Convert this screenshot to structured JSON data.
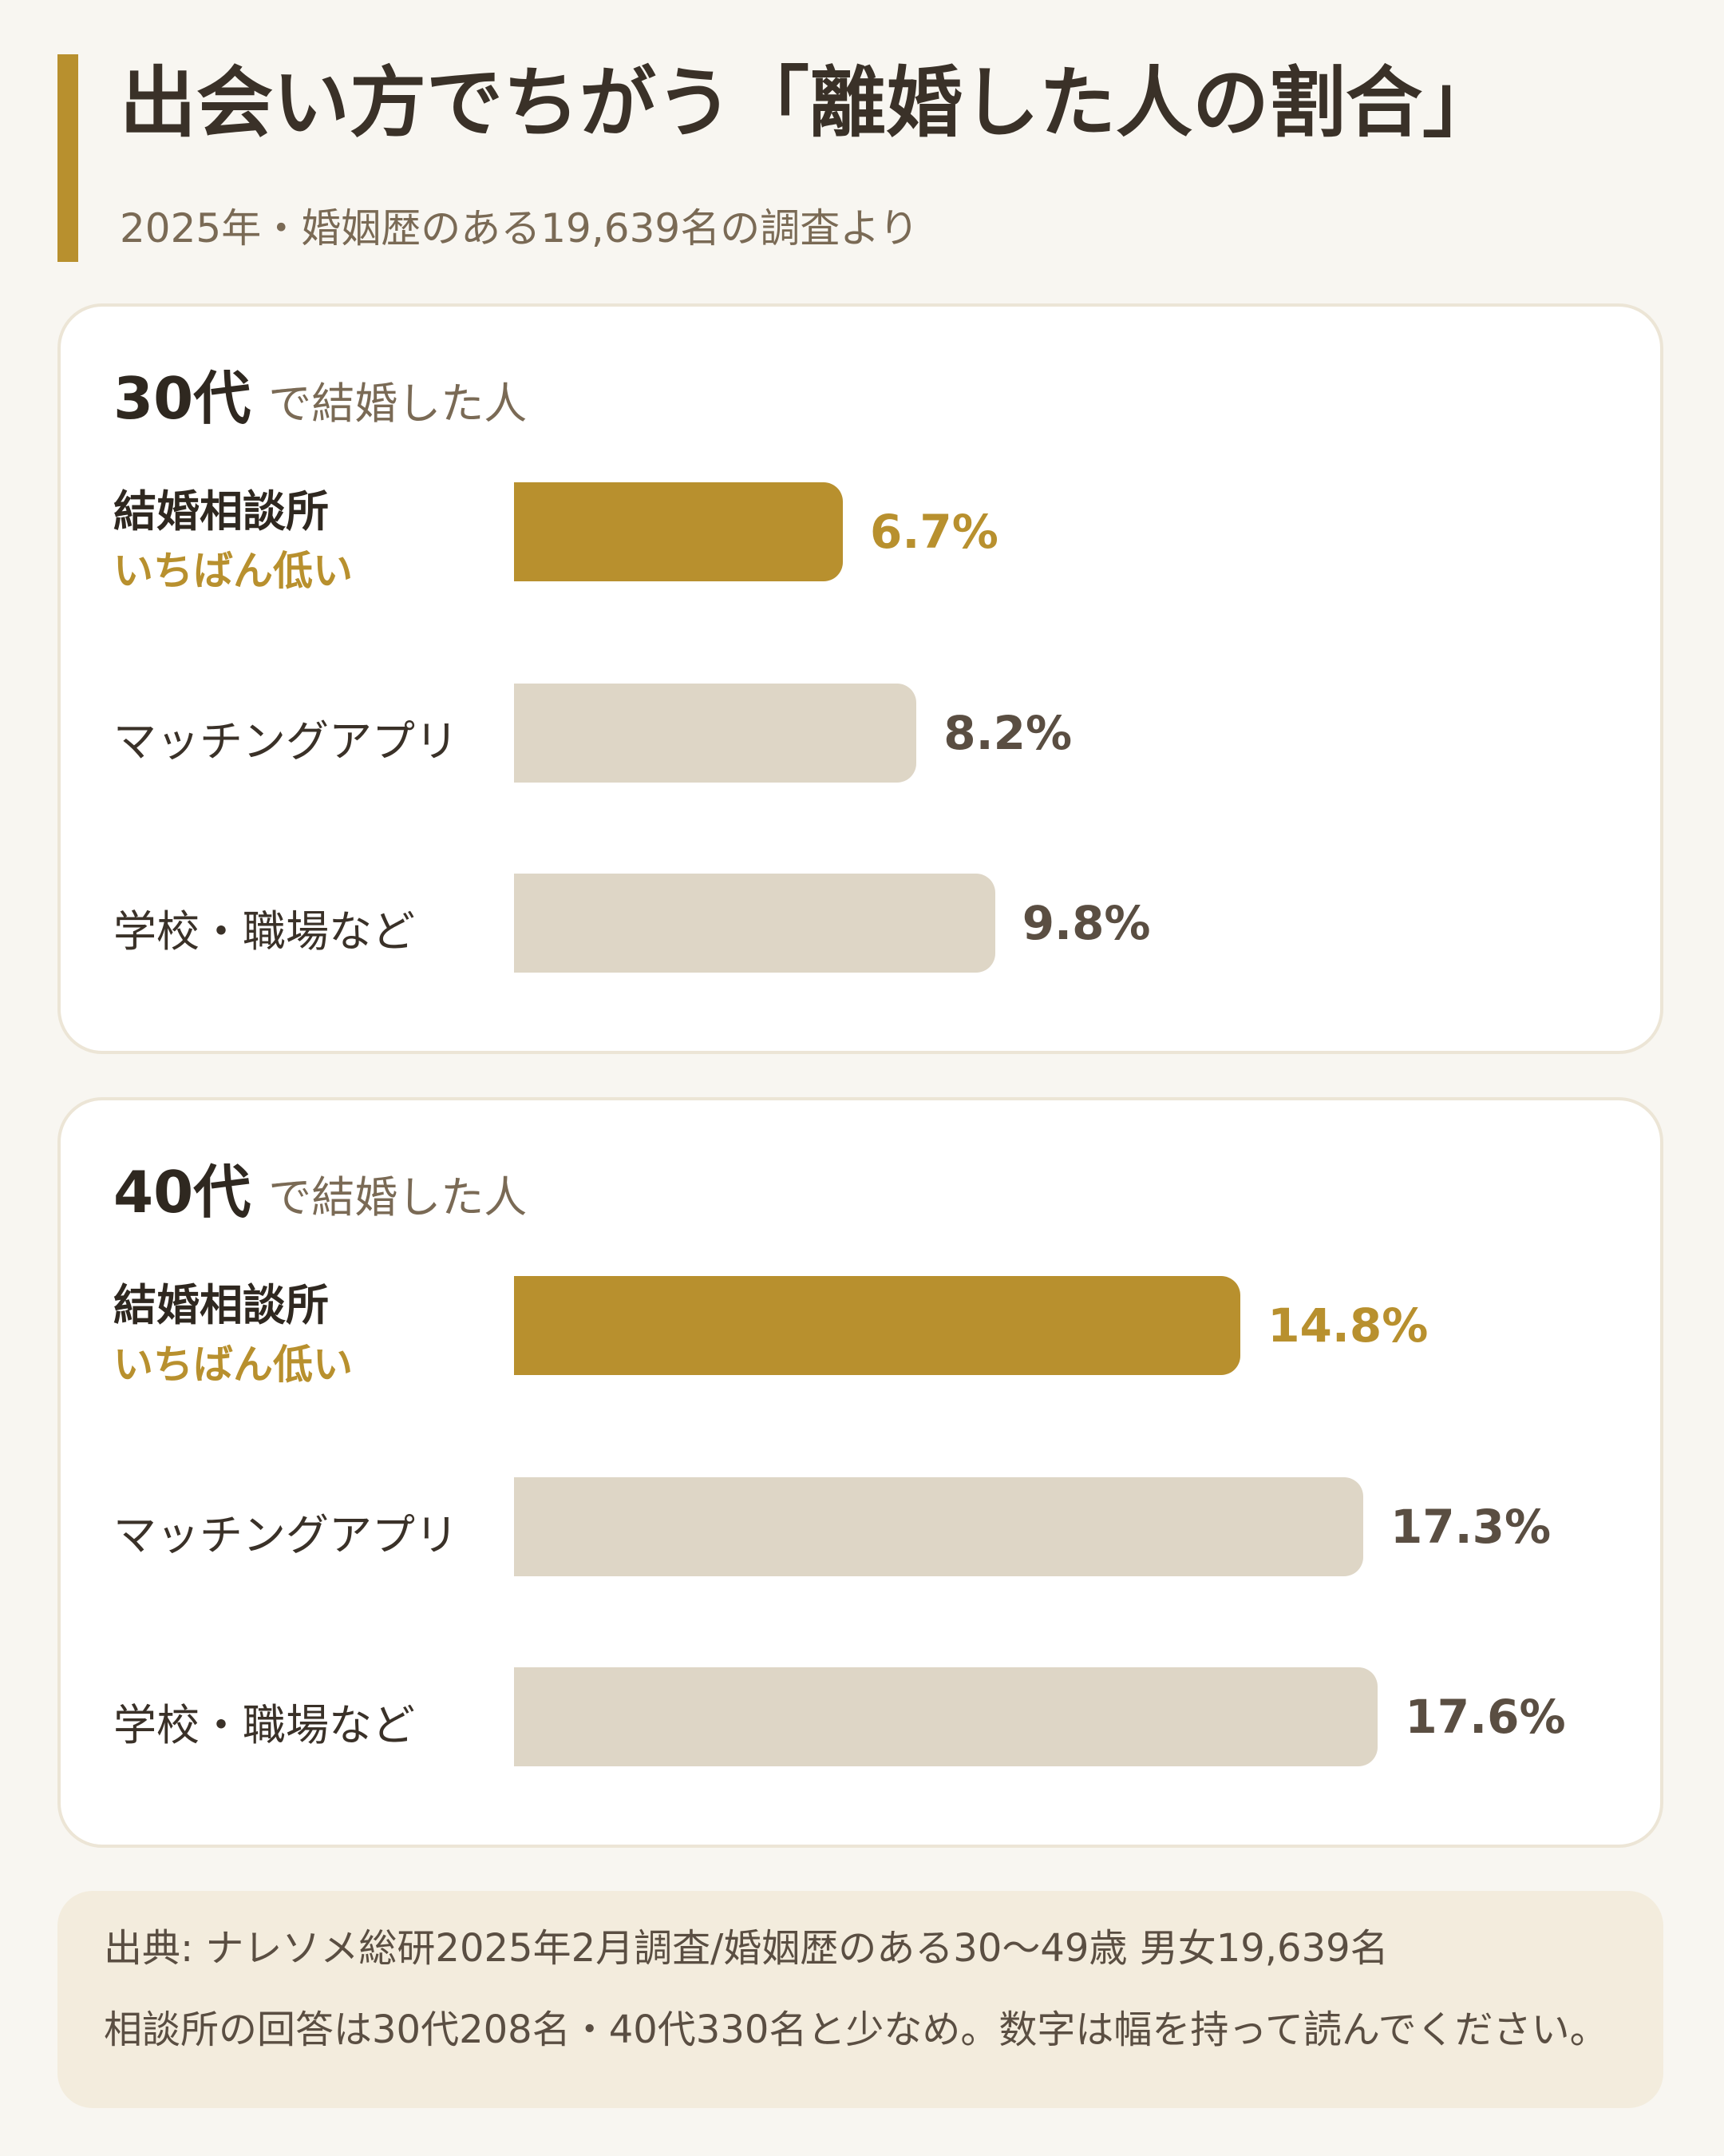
{
  "header": {
    "title": "出会い方でちがう「離婚した人の割合」",
    "subtitle": "2025年・婚姻歴のある19,639名の調査より"
  },
  "chart_data": [
    {
      "type": "bar",
      "orientation": "horizontal",
      "title_age": "30代",
      "title_rest": "で結婚した人",
      "categories": [
        "結婚相談所",
        "マッチングアプリ",
        "学校・職場など"
      ],
      "category_notes": [
        "いちばん低い",
        "",
        ""
      ],
      "values": [
        6.7,
        8.2,
        9.8
      ],
      "value_labels": [
        "6.7%",
        "8.2%",
        "9.8%"
      ],
      "highlight_index": 0,
      "xlim": [
        0,
        20
      ],
      "grid": false,
      "colors": {
        "highlight": "#b8902e",
        "default": "#ded6c6"
      }
    },
    {
      "type": "bar",
      "orientation": "horizontal",
      "title_age": "40代",
      "title_rest": "で結婚した人",
      "categories": [
        "結婚相談所",
        "マッチングアプリ",
        "学校・職場など"
      ],
      "category_notes": [
        "いちばん低い",
        "",
        ""
      ],
      "values": [
        14.8,
        17.3,
        17.6
      ],
      "value_labels": [
        "14.8%",
        "17.3%",
        "17.6%"
      ],
      "highlight_index": 0,
      "xlim": [
        0,
        20
      ],
      "grid": false,
      "colors": {
        "highlight": "#b8902e",
        "default": "#ded6c6"
      }
    }
  ],
  "footnote": {
    "line1": "出典: ナレソメ総研2025年2月調査/婚姻歴のある30〜49歳 男女19,639名",
    "line2": "相談所の回答は30代208名・40代330名と少なめ。数字は幅を持って読んでください。"
  }
}
